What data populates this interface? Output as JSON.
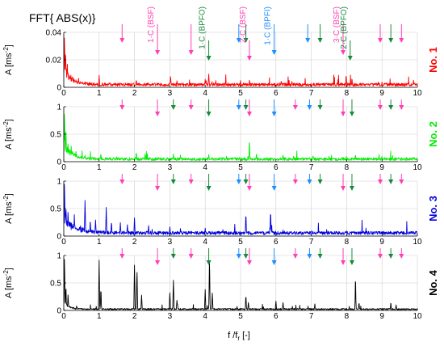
{
  "figure": {
    "title": "FFT{ ABS(x)}",
    "xlabel_main": "f /f",
    "xlabel_sub": "r",
    "xlabel_unit": " [-]",
    "ylabel_main": "A [ms",
    "ylabel_sup": "-2",
    "ylabel_close": "]",
    "colors": {
      "magenta": "#ff3fb4",
      "green": "#188a3c",
      "blue": "#1e8fff",
      "grid": "#d0d0d0"
    }
  },
  "chart_data": [
    {
      "type": "line",
      "name": "No. 1",
      "label": "No. 1",
      "color": "#ff0000",
      "xlim": [
        0,
        10
      ],
      "ylim": [
        0,
        0.04
      ],
      "x_ticks": [
        0,
        1,
        2,
        3,
        4,
        5,
        6,
        7,
        8,
        9,
        10
      ],
      "y_ticks": [
        0,
        0.02,
        0.04
      ],
      "y_tick_labels": [
        "0",
        "0.02",
        "0.04"
      ],
      "noise_floor": 0.0025,
      "decay": {
        "amp": 0.014,
        "tau": 0.22
      },
      "peaks": [
        [
          0.02,
          0.038
        ],
        [
          0.05,
          0.028
        ],
        [
          0.1,
          0.018
        ],
        [
          1.0,
          0.009
        ],
        [
          2.05,
          0.006
        ],
        [
          3.02,
          0.0085
        ],
        [
          3.2,
          0.005
        ],
        [
          4.0,
          0.006
        ],
        [
          4.1,
          0.0105
        ],
        [
          4.3,
          0.005
        ],
        [
          5.0,
          0.005
        ],
        [
          5.25,
          0.006
        ],
        [
          6.15,
          0.005
        ],
        [
          7.05,
          0.003
        ],
        [
          8.15,
          0.007
        ],
        [
          9.0,
          0.004
        ],
        [
          9.2,
          0.003
        ]
      ],
      "arrows": [
        {
          "x": 1.65,
          "color": "magenta",
          "pos": "top",
          "size": "short"
        },
        {
          "x": 2.65,
          "color": "magenta",
          "pos": "top",
          "size": "long"
        },
        {
          "x": 3.6,
          "color": "magenta",
          "pos": "top",
          "size": "long"
        },
        {
          "x": 4.1,
          "color": "green",
          "pos": "mid",
          "size": "short"
        },
        {
          "x": 4.95,
          "color": "blue",
          "pos": "top",
          "size": "short"
        },
        {
          "x": 5.15,
          "color": "green",
          "pos": "top",
          "size": "short"
        },
        {
          "x": 5.25,
          "color": "magenta",
          "pos": "mid",
          "size": "short"
        },
        {
          "x": 5.95,
          "color": "blue",
          "pos": "top",
          "size": "long"
        },
        {
          "x": 6.9,
          "color": "blue",
          "pos": "top",
          "size": "short"
        },
        {
          "x": 7.25,
          "color": "green",
          "pos": "top",
          "size": "short"
        },
        {
          "x": 7.9,
          "color": "magenta",
          "pos": "top",
          "size": "long"
        },
        {
          "x": 8.1,
          "color": "green",
          "pos": "mid",
          "size": "short"
        },
        {
          "x": 8.95,
          "color": "magenta",
          "pos": "top",
          "size": "short"
        },
        {
          "x": 9.25,
          "color": "green",
          "pos": "top",
          "size": "short"
        },
        {
          "x": 9.55,
          "color": "magenta",
          "pos": "top",
          "size": "short"
        }
      ],
      "annotations": [
        {
          "text": "1·C (BSF)",
          "x": 2.65,
          "color": "magenta"
        },
        {
          "text": "1·C (BPFO)",
          "x": 4.1,
          "color": "green"
        },
        {
          "text": "2·C (BSF)",
          "x": 5.25,
          "color": "magenta"
        },
        {
          "text": "1·C (BPFI)",
          "x": 5.95,
          "color": "blue"
        },
        {
          "text": "3·C (BSF)",
          "x": 7.9,
          "color": "magenta"
        },
        {
          "text": "2·C (BPFO)",
          "x": 8.1,
          "color": "green"
        }
      ]
    },
    {
      "type": "line",
      "name": "No. 2",
      "label": "No. 2",
      "color": "#00ee00",
      "xlim": [
        0,
        10
      ],
      "ylim": [
        0,
        1
      ],
      "x_ticks": [
        0,
        1,
        2,
        3,
        4,
        5,
        6,
        7,
        8,
        9,
        10
      ],
      "y_ticks": [
        0,
        0.5,
        1
      ],
      "y_tick_labels": [
        "0",
        "0.5",
        "1"
      ],
      "noise_floor": 0.06,
      "decay": {
        "amp": 0.35,
        "tau": 0.2
      },
      "peaks": [
        [
          0.02,
          0.95
        ],
        [
          0.06,
          0.6
        ],
        [
          0.12,
          0.35
        ],
        [
          0.6,
          0.12
        ],
        [
          1.05,
          0.15
        ],
        [
          1.5,
          0.1
        ],
        [
          2.05,
          0.18
        ],
        [
          2.3,
          0.14
        ],
        [
          3.1,
          0.15
        ],
        [
          3.3,
          0.12
        ],
        [
          4.1,
          0.14
        ],
        [
          4.6,
          0.1
        ],
        [
          5.25,
          0.42
        ],
        [
          5.45,
          0.16
        ],
        [
          6.2,
          0.12
        ],
        [
          6.5,
          0.1
        ],
        [
          7.05,
          0.12
        ],
        [
          7.5,
          0.1
        ],
        [
          8.25,
          0.14
        ],
        [
          9.0,
          0.1
        ],
        [
          9.3,
          0.12
        ]
      ],
      "arrows": [
        {
          "x": 1.65,
          "color": "magenta",
          "pos": "top",
          "size": "short"
        },
        {
          "x": 2.65,
          "color": "magenta",
          "pos": "top",
          "size": "long"
        },
        {
          "x": 3.1,
          "color": "green",
          "pos": "top",
          "size": "short"
        },
        {
          "x": 3.6,
          "color": "magenta",
          "pos": "top",
          "size": "short"
        },
        {
          "x": 4.1,
          "color": "green",
          "pos": "top",
          "size": "long"
        },
        {
          "x": 4.95,
          "color": "blue",
          "pos": "top",
          "size": "short"
        },
        {
          "x": 5.15,
          "color": "green",
          "pos": "top",
          "size": "short"
        },
        {
          "x": 5.25,
          "color": "magenta",
          "pos": "top",
          "size": "long"
        },
        {
          "x": 5.95,
          "color": "blue",
          "pos": "top",
          "size": "long"
        },
        {
          "x": 6.55,
          "color": "magenta",
          "pos": "top",
          "size": "short"
        },
        {
          "x": 6.95,
          "color": "blue",
          "pos": "top",
          "size": "short"
        },
        {
          "x": 7.25,
          "color": "green",
          "pos": "top",
          "size": "short"
        },
        {
          "x": 7.9,
          "color": "magenta",
          "pos": "top",
          "size": "long"
        },
        {
          "x": 8.15,
          "color": "green",
          "pos": "top",
          "size": "long"
        },
        {
          "x": 8.95,
          "color": "magenta",
          "pos": "top",
          "size": "short"
        },
        {
          "x": 9.25,
          "color": "green",
          "pos": "top",
          "size": "short"
        },
        {
          "x": 9.55,
          "color": "magenta",
          "pos": "top",
          "size": "short"
        }
      ],
      "annotations": []
    },
    {
      "type": "line",
      "name": "No. 3",
      "label": "No. 3",
      "color": "#0000dd",
      "xlim": [
        0,
        10
      ],
      "ylim": [
        0,
        1
      ],
      "x_ticks": [
        0,
        1,
        2,
        3,
        4,
        5,
        6,
        7,
        8,
        9,
        10
      ],
      "y_ticks": [
        0,
        0.5,
        1
      ],
      "y_tick_labels": [
        "0",
        "0.5",
        "1"
      ],
      "noise_floor": 0.07,
      "decay": {
        "amp": 0.3,
        "tau": 0.35
      },
      "peaks": [
        [
          0.02,
          0.98
        ],
        [
          0.06,
          0.55
        ],
        [
          0.12,
          0.45
        ],
        [
          0.3,
          0.4
        ],
        [
          0.6,
          0.7
        ],
        [
          0.75,
          0.3
        ],
        [
          0.9,
          0.3
        ],
        [
          1.2,
          0.55
        ],
        [
          1.35,
          0.28
        ],
        [
          1.6,
          0.25
        ],
        [
          1.8,
          0.22
        ],
        [
          2.0,
          0.35
        ],
        [
          2.4,
          0.2
        ],
        [
          3.0,
          0.18
        ],
        [
          3.3,
          0.15
        ],
        [
          4.0,
          0.15
        ],
        [
          4.5,
          0.12
        ],
        [
          5.15,
          0.42
        ],
        [
          5.85,
          0.48
        ],
        [
          6.2,
          0.12
        ],
        [
          7.0,
          0.1
        ],
        [
          8.0,
          0.1
        ],
        [
          9.0,
          0.08
        ]
      ],
      "arrows": [
        {
          "x": 1.65,
          "color": "magenta",
          "pos": "top",
          "size": "short"
        },
        {
          "x": 2.65,
          "color": "magenta",
          "pos": "top",
          "size": "long"
        },
        {
          "x": 3.1,
          "color": "green",
          "pos": "top",
          "size": "short"
        },
        {
          "x": 3.6,
          "color": "magenta",
          "pos": "top",
          "size": "short"
        },
        {
          "x": 4.1,
          "color": "green",
          "pos": "top",
          "size": "long"
        },
        {
          "x": 4.95,
          "color": "blue",
          "pos": "top",
          "size": "short"
        },
        {
          "x": 5.15,
          "color": "green",
          "pos": "top",
          "size": "short"
        },
        {
          "x": 5.25,
          "color": "magenta",
          "pos": "top",
          "size": "long"
        },
        {
          "x": 5.95,
          "color": "blue",
          "pos": "top",
          "size": "long"
        },
        {
          "x": 6.55,
          "color": "magenta",
          "pos": "top",
          "size": "short"
        },
        {
          "x": 6.95,
          "color": "blue",
          "pos": "top",
          "size": "short"
        },
        {
          "x": 7.25,
          "color": "green",
          "pos": "top",
          "size": "short"
        },
        {
          "x": 7.9,
          "color": "magenta",
          "pos": "top",
          "size": "long"
        },
        {
          "x": 8.15,
          "color": "green",
          "pos": "top",
          "size": "long"
        },
        {
          "x": 8.95,
          "color": "magenta",
          "pos": "top",
          "size": "short"
        },
        {
          "x": 9.25,
          "color": "green",
          "pos": "top",
          "size": "short"
        },
        {
          "x": 9.55,
          "color": "magenta",
          "pos": "top",
          "size": "short"
        }
      ],
      "annotations": []
    },
    {
      "type": "line",
      "name": "No. 4",
      "label": "No. 4",
      "color": "#000000",
      "xlim": [
        0,
        10
      ],
      "ylim": [
        0,
        1
      ],
      "x_ticks": [
        0,
        1,
        2,
        3,
        4,
        5,
        6,
        7,
        8,
        9,
        10
      ],
      "y_ticks": [
        0,
        0.5,
        1
      ],
      "y_tick_labels": [
        "0",
        "0.5",
        "1"
      ],
      "noise_floor": 0.03,
      "decay": {
        "amp": 0.15,
        "tau": 0.15
      },
      "peaks": [
        [
          0.02,
          1.0
        ],
        [
          0.06,
          0.45
        ],
        [
          0.12,
          0.3
        ],
        [
          1.0,
          0.92
        ],
        [
          1.05,
          0.4
        ],
        [
          2.0,
          0.88
        ],
        [
          2.07,
          0.78
        ],
        [
          2.2,
          0.3
        ],
        [
          3.0,
          0.35
        ],
        [
          3.1,
          0.58
        ],
        [
          3.2,
          0.2
        ],
        [
          4.0,
          0.4
        ],
        [
          4.12,
          1.0
        ],
        [
          4.2,
          0.35
        ],
        [
          5.15,
          0.28
        ],
        [
          5.22,
          0.15
        ],
        [
          6.0,
          0.18
        ],
        [
          6.2,
          0.15
        ],
        [
          7.1,
          0.12
        ],
        [
          8.25,
          0.62
        ],
        [
          8.35,
          0.15
        ],
        [
          9.25,
          0.15
        ],
        [
          9.4,
          0.1
        ]
      ],
      "arrows": [
        {
          "x": 1.65,
          "color": "magenta",
          "pos": "top",
          "size": "short"
        },
        {
          "x": 2.65,
          "color": "magenta",
          "pos": "top",
          "size": "long"
        },
        {
          "x": 3.1,
          "color": "green",
          "pos": "top",
          "size": "short"
        },
        {
          "x": 3.6,
          "color": "magenta",
          "pos": "top",
          "size": "short"
        },
        {
          "x": 4.1,
          "color": "green",
          "pos": "top",
          "size": "long"
        },
        {
          "x": 4.95,
          "color": "blue",
          "pos": "top",
          "size": "short"
        },
        {
          "x": 5.15,
          "color": "green",
          "pos": "top",
          "size": "short"
        },
        {
          "x": 5.25,
          "color": "magenta",
          "pos": "top",
          "size": "long"
        },
        {
          "x": 5.95,
          "color": "blue",
          "pos": "top",
          "size": "long"
        },
        {
          "x": 6.55,
          "color": "magenta",
          "pos": "top",
          "size": "short"
        },
        {
          "x": 6.95,
          "color": "blue",
          "pos": "top",
          "size": "short"
        },
        {
          "x": 7.25,
          "color": "green",
          "pos": "top",
          "size": "short"
        },
        {
          "x": 7.9,
          "color": "magenta",
          "pos": "top",
          "size": "long"
        },
        {
          "x": 8.15,
          "color": "green",
          "pos": "top",
          "size": "long"
        },
        {
          "x": 8.95,
          "color": "magenta",
          "pos": "top",
          "size": "short"
        },
        {
          "x": 9.25,
          "color": "green",
          "pos": "top",
          "size": "short"
        },
        {
          "x": 9.55,
          "color": "magenta",
          "pos": "top",
          "size": "short"
        }
      ],
      "annotations": []
    }
  ]
}
